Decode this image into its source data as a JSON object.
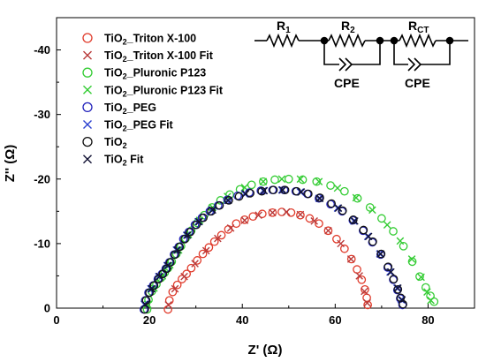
{
  "chart_data": {
    "type": "scatter",
    "xlabel": "Z' (Ω)",
    "ylabel": "Z'' (Ω)",
    "xlim": [
      0,
      90
    ],
    "ylim": [
      0,
      -45
    ],
    "x_ticks": [
      "0",
      "20",
      "40",
      "60",
      "80"
    ],
    "y_ticks": [
      "0",
      "-10",
      "-20",
      "-30",
      "-40"
    ],
    "x_tick_values": [
      0,
      20,
      40,
      60,
      80
    ],
    "y_tick_values": [
      0,
      -10,
      -20,
      -30,
      -40
    ],
    "legend_placement": "top-left",
    "series": [
      {
        "name": "TiO2_Triton X-100",
        "label_parts": [
          "TiO",
          "2",
          "_Triton X-100"
        ],
        "marker": "circle",
        "color": "#e03a2a",
        "points": [
          [
            24.0,
            0.2
          ],
          [
            24.3,
            -1.2
          ],
          [
            25.0,
            -2.5
          ],
          [
            26.0,
            -3.6
          ],
          [
            27.0,
            -4.5
          ],
          [
            28.0,
            -5.3
          ],
          [
            29.0,
            -6.2
          ],
          [
            30.3,
            -7.4
          ],
          [
            31.5,
            -8.4
          ],
          [
            32.8,
            -9.4
          ],
          [
            34.0,
            -10.3
          ],
          [
            35.5,
            -11.3
          ],
          [
            37.0,
            -12.2
          ],
          [
            38.7,
            -13.1
          ],
          [
            40.5,
            -13.7
          ],
          [
            42.3,
            -14.2
          ],
          [
            44.3,
            -14.6
          ],
          [
            46.5,
            -14.8
          ],
          [
            48.5,
            -14.9
          ],
          [
            50.5,
            -14.8
          ],
          [
            52.5,
            -14.4
          ],
          [
            54.5,
            -13.9
          ],
          [
            56.5,
            -13.1
          ],
          [
            58.5,
            -12.0
          ],
          [
            60.3,
            -10.7
          ],
          [
            62.0,
            -9.2
          ],
          [
            63.5,
            -7.6
          ],
          [
            64.7,
            -6.0
          ],
          [
            65.7,
            -4.4
          ],
          [
            66.4,
            -2.9
          ],
          [
            66.8,
            -1.6
          ],
          [
            67.0,
            -0.5
          ]
        ]
      },
      {
        "name": "TiO2_Triton X-100 Fit",
        "label_parts": [
          "TiO",
          "2",
          "_Triton X-100 Fit"
        ],
        "marker": "x",
        "color": "#b83a3a",
        "points": [
          [
            24.1,
            -0.5
          ],
          [
            25.5,
            -3.0
          ],
          [
            27.5,
            -4.9
          ],
          [
            29.8,
            -6.9
          ],
          [
            32.2,
            -8.9
          ],
          [
            34.7,
            -10.8
          ],
          [
            37.5,
            -12.4
          ],
          [
            40.5,
            -13.6
          ],
          [
            43.5,
            -14.4
          ],
          [
            46.5,
            -14.8
          ],
          [
            49.5,
            -14.9
          ],
          [
            52.5,
            -14.5
          ],
          [
            55.5,
            -13.5
          ],
          [
            58.5,
            -12.0
          ],
          [
            61.2,
            -10.0
          ],
          [
            63.4,
            -7.6
          ],
          [
            65.2,
            -5.0
          ],
          [
            66.3,
            -2.6
          ],
          [
            66.9,
            -0.8
          ]
        ]
      },
      {
        "name": "TiO2_Pluronic P123",
        "label_parts": [
          "TiO",
          "2",
          "_Pluronic P123"
        ],
        "marker": "circle",
        "color": "#33cc33",
        "points": [
          [
            19.5,
            0.2
          ],
          [
            19.8,
            -1.3
          ],
          [
            20.5,
            -2.6
          ],
          [
            21.5,
            -3.7
          ],
          [
            22.5,
            -4.7
          ],
          [
            23.3,
            -5.5
          ],
          [
            24.0,
            -6.2
          ],
          [
            24.8,
            -7.2
          ],
          [
            25.8,
            -8.4
          ],
          [
            26.8,
            -9.6
          ],
          [
            27.8,
            -10.8
          ],
          [
            29.0,
            -12.0
          ],
          [
            30.3,
            -13.2
          ],
          [
            31.8,
            -14.4
          ],
          [
            33.5,
            -15.6
          ],
          [
            35.3,
            -16.7
          ],
          [
            37.3,
            -17.6
          ],
          [
            39.5,
            -18.4
          ],
          [
            42.0,
            -19.1
          ],
          [
            44.5,
            -19.6
          ],
          [
            47.0,
            -19.9
          ],
          [
            50.0,
            -20.0
          ],
          [
            53.0,
            -19.9
          ],
          [
            56.0,
            -19.6
          ],
          [
            59.0,
            -19.0
          ],
          [
            62.0,
            -18.1
          ],
          [
            64.8,
            -17.0
          ],
          [
            67.5,
            -15.6
          ],
          [
            70.0,
            -13.9
          ],
          [
            72.5,
            -11.9
          ],
          [
            74.7,
            -9.6
          ],
          [
            76.6,
            -7.2
          ],
          [
            78.2,
            -4.9
          ],
          [
            79.5,
            -3.2
          ],
          [
            80.5,
            -1.9
          ],
          [
            81.3,
            -1.0
          ]
        ]
      },
      {
        "name": "TiO2_Pluronic P123 Fit",
        "label_parts": [
          "TiO",
          "2",
          "_Pluronic P123 Fit"
        ],
        "marker": "x",
        "color": "#33cc33",
        "points": [
          [
            19.6,
            -0.6
          ],
          [
            21.0,
            -3.1
          ],
          [
            22.8,
            -5.0
          ],
          [
            24.4,
            -6.7
          ],
          [
            26.3,
            -9.0
          ],
          [
            28.4,
            -11.4
          ],
          [
            30.8,
            -13.6
          ],
          [
            33.6,
            -15.6
          ],
          [
            36.8,
            -17.3
          ],
          [
            40.5,
            -18.7
          ],
          [
            44.5,
            -19.6
          ],
          [
            48.5,
            -20.0
          ],
          [
            52.5,
            -20.0
          ],
          [
            56.5,
            -19.6
          ],
          [
            60.5,
            -18.6
          ],
          [
            64.5,
            -17.1
          ],
          [
            68.0,
            -15.2
          ],
          [
            71.2,
            -12.9
          ],
          [
            74.0,
            -10.4
          ],
          [
            76.5,
            -7.6
          ],
          [
            78.5,
            -4.8
          ],
          [
            79.8,
            -2.5
          ],
          [
            80.6,
            -1.2
          ]
        ]
      },
      {
        "name": "TiO2_PEG",
        "label_parts": [
          "TiO",
          "2",
          "_PEG"
        ],
        "marker": "circle",
        "color": "#2222bb",
        "points": [
          [
            18.8,
            0.2
          ],
          [
            19.1,
            -1.2
          ],
          [
            19.8,
            -2.4
          ],
          [
            20.8,
            -3.5
          ],
          [
            21.8,
            -4.5
          ],
          [
            22.7,
            -5.3
          ],
          [
            23.5,
            -6.1
          ],
          [
            24.3,
            -7.1
          ],
          [
            25.3,
            -8.3
          ],
          [
            26.3,
            -9.5
          ],
          [
            27.3,
            -10.7
          ],
          [
            28.5,
            -11.8
          ],
          [
            29.8,
            -12.9
          ],
          [
            31.3,
            -14.0
          ],
          [
            33.0,
            -15.0
          ],
          [
            34.8,
            -15.9
          ],
          [
            36.8,
            -16.8
          ],
          [
            39.0,
            -17.4
          ],
          [
            41.5,
            -17.9
          ],
          [
            44.0,
            -18.2
          ],
          [
            46.5,
            -18.3
          ],
          [
            49.0,
            -18.3
          ],
          [
            51.5,
            -18.1
          ],
          [
            54.0,
            -17.7
          ],
          [
            56.5,
            -17.0
          ],
          [
            59.0,
            -16.1
          ],
          [
            61.5,
            -15.0
          ],
          [
            63.8,
            -13.6
          ],
          [
            66.0,
            -12.0
          ],
          [
            68.0,
            -10.2
          ],
          [
            69.8,
            -8.3
          ],
          [
            71.3,
            -6.3
          ],
          [
            72.5,
            -4.4
          ],
          [
            73.4,
            -2.8
          ],
          [
            74.0,
            -1.5
          ],
          [
            74.5,
            -0.5
          ]
        ]
      },
      {
        "name": "TiO2_PEG Fit",
        "label_parts": [
          "TiO",
          "2",
          "_PEG Fit"
        ],
        "marker": "x",
        "color": "#2a3fd0",
        "points": [
          [
            18.9,
            -0.6
          ],
          [
            20.3,
            -3.0
          ],
          [
            22.0,
            -4.9
          ],
          [
            23.8,
            -6.6
          ],
          [
            25.8,
            -9.0
          ],
          [
            28.0,
            -11.3
          ],
          [
            30.5,
            -13.4
          ],
          [
            33.4,
            -15.2
          ],
          [
            36.8,
            -16.7
          ],
          [
            40.5,
            -17.7
          ],
          [
            44.5,
            -18.2
          ],
          [
            48.5,
            -18.3
          ],
          [
            52.5,
            -18.0
          ],
          [
            56.5,
            -17.0
          ],
          [
            60.5,
            -15.5
          ],
          [
            64.0,
            -13.5
          ],
          [
            67.0,
            -11.1
          ],
          [
            69.6,
            -8.4
          ],
          [
            71.8,
            -5.6
          ],
          [
            73.3,
            -3.1
          ],
          [
            74.2,
            -1.3
          ]
        ]
      },
      {
        "name": "TiO2",
        "label_parts": [
          "TiO",
          "2",
          ""
        ],
        "marker": "circle",
        "color": "#111111",
        "points": [
          [
            19.0,
            0.2
          ],
          [
            19.3,
            -1.2
          ],
          [
            20.0,
            -2.4
          ],
          [
            21.0,
            -3.5
          ],
          [
            22.0,
            -4.5
          ],
          [
            22.9,
            -5.3
          ],
          [
            23.7,
            -6.1
          ],
          [
            24.5,
            -7.1
          ],
          [
            25.5,
            -8.3
          ],
          [
            26.5,
            -9.5
          ],
          [
            27.6,
            -10.7
          ],
          [
            28.8,
            -11.8
          ],
          [
            30.1,
            -12.9
          ],
          [
            31.6,
            -14.0
          ],
          [
            33.3,
            -15.0
          ],
          [
            35.1,
            -15.9
          ],
          [
            37.1,
            -16.7
          ],
          [
            39.3,
            -17.3
          ],
          [
            41.7,
            -17.8
          ],
          [
            44.2,
            -18.1
          ],
          [
            46.7,
            -18.3
          ],
          [
            49.2,
            -18.3
          ],
          [
            51.7,
            -18.1
          ],
          [
            54.2,
            -17.7
          ],
          [
            56.7,
            -17.1
          ],
          [
            59.2,
            -16.2
          ],
          [
            61.6,
            -15.1
          ],
          [
            63.9,
            -13.7
          ],
          [
            66.1,
            -12.1
          ],
          [
            68.1,
            -10.3
          ],
          [
            69.9,
            -8.4
          ],
          [
            71.4,
            -6.4
          ],
          [
            72.6,
            -4.5
          ],
          [
            73.5,
            -2.9
          ],
          [
            74.1,
            -1.6
          ],
          [
            74.6,
            -0.6
          ]
        ]
      },
      {
        "name": "TiO2 Fit",
        "label_parts": [
          "TiO",
          "2",
          " Fit"
        ],
        "marker": "x",
        "color": "#111133",
        "points": [
          [
            19.1,
            -0.6
          ],
          [
            20.5,
            -3.0
          ],
          [
            22.2,
            -4.9
          ],
          [
            24.0,
            -6.6
          ],
          [
            26.0,
            -9.0
          ],
          [
            28.2,
            -11.3
          ],
          [
            30.7,
            -13.4
          ],
          [
            33.6,
            -15.2
          ],
          [
            37.0,
            -16.7
          ],
          [
            40.7,
            -17.7
          ],
          [
            44.7,
            -18.2
          ],
          [
            48.7,
            -18.3
          ],
          [
            52.7,
            -18.0
          ],
          [
            56.7,
            -17.0
          ],
          [
            60.7,
            -15.5
          ],
          [
            64.2,
            -13.5
          ],
          [
            67.2,
            -11.1
          ],
          [
            69.8,
            -8.4
          ],
          [
            72.0,
            -5.6
          ],
          [
            73.5,
            -3.1
          ],
          [
            74.4,
            -1.3
          ]
        ]
      }
    ]
  },
  "circuit": {
    "r1_main": "R",
    "r1_sub": "1",
    "r2_main": "R",
    "r2_sub": "2",
    "rct_main": "R",
    "rct_sub": "CT",
    "cpe1_label": "CPE",
    "cpe2_label": "CPE"
  }
}
